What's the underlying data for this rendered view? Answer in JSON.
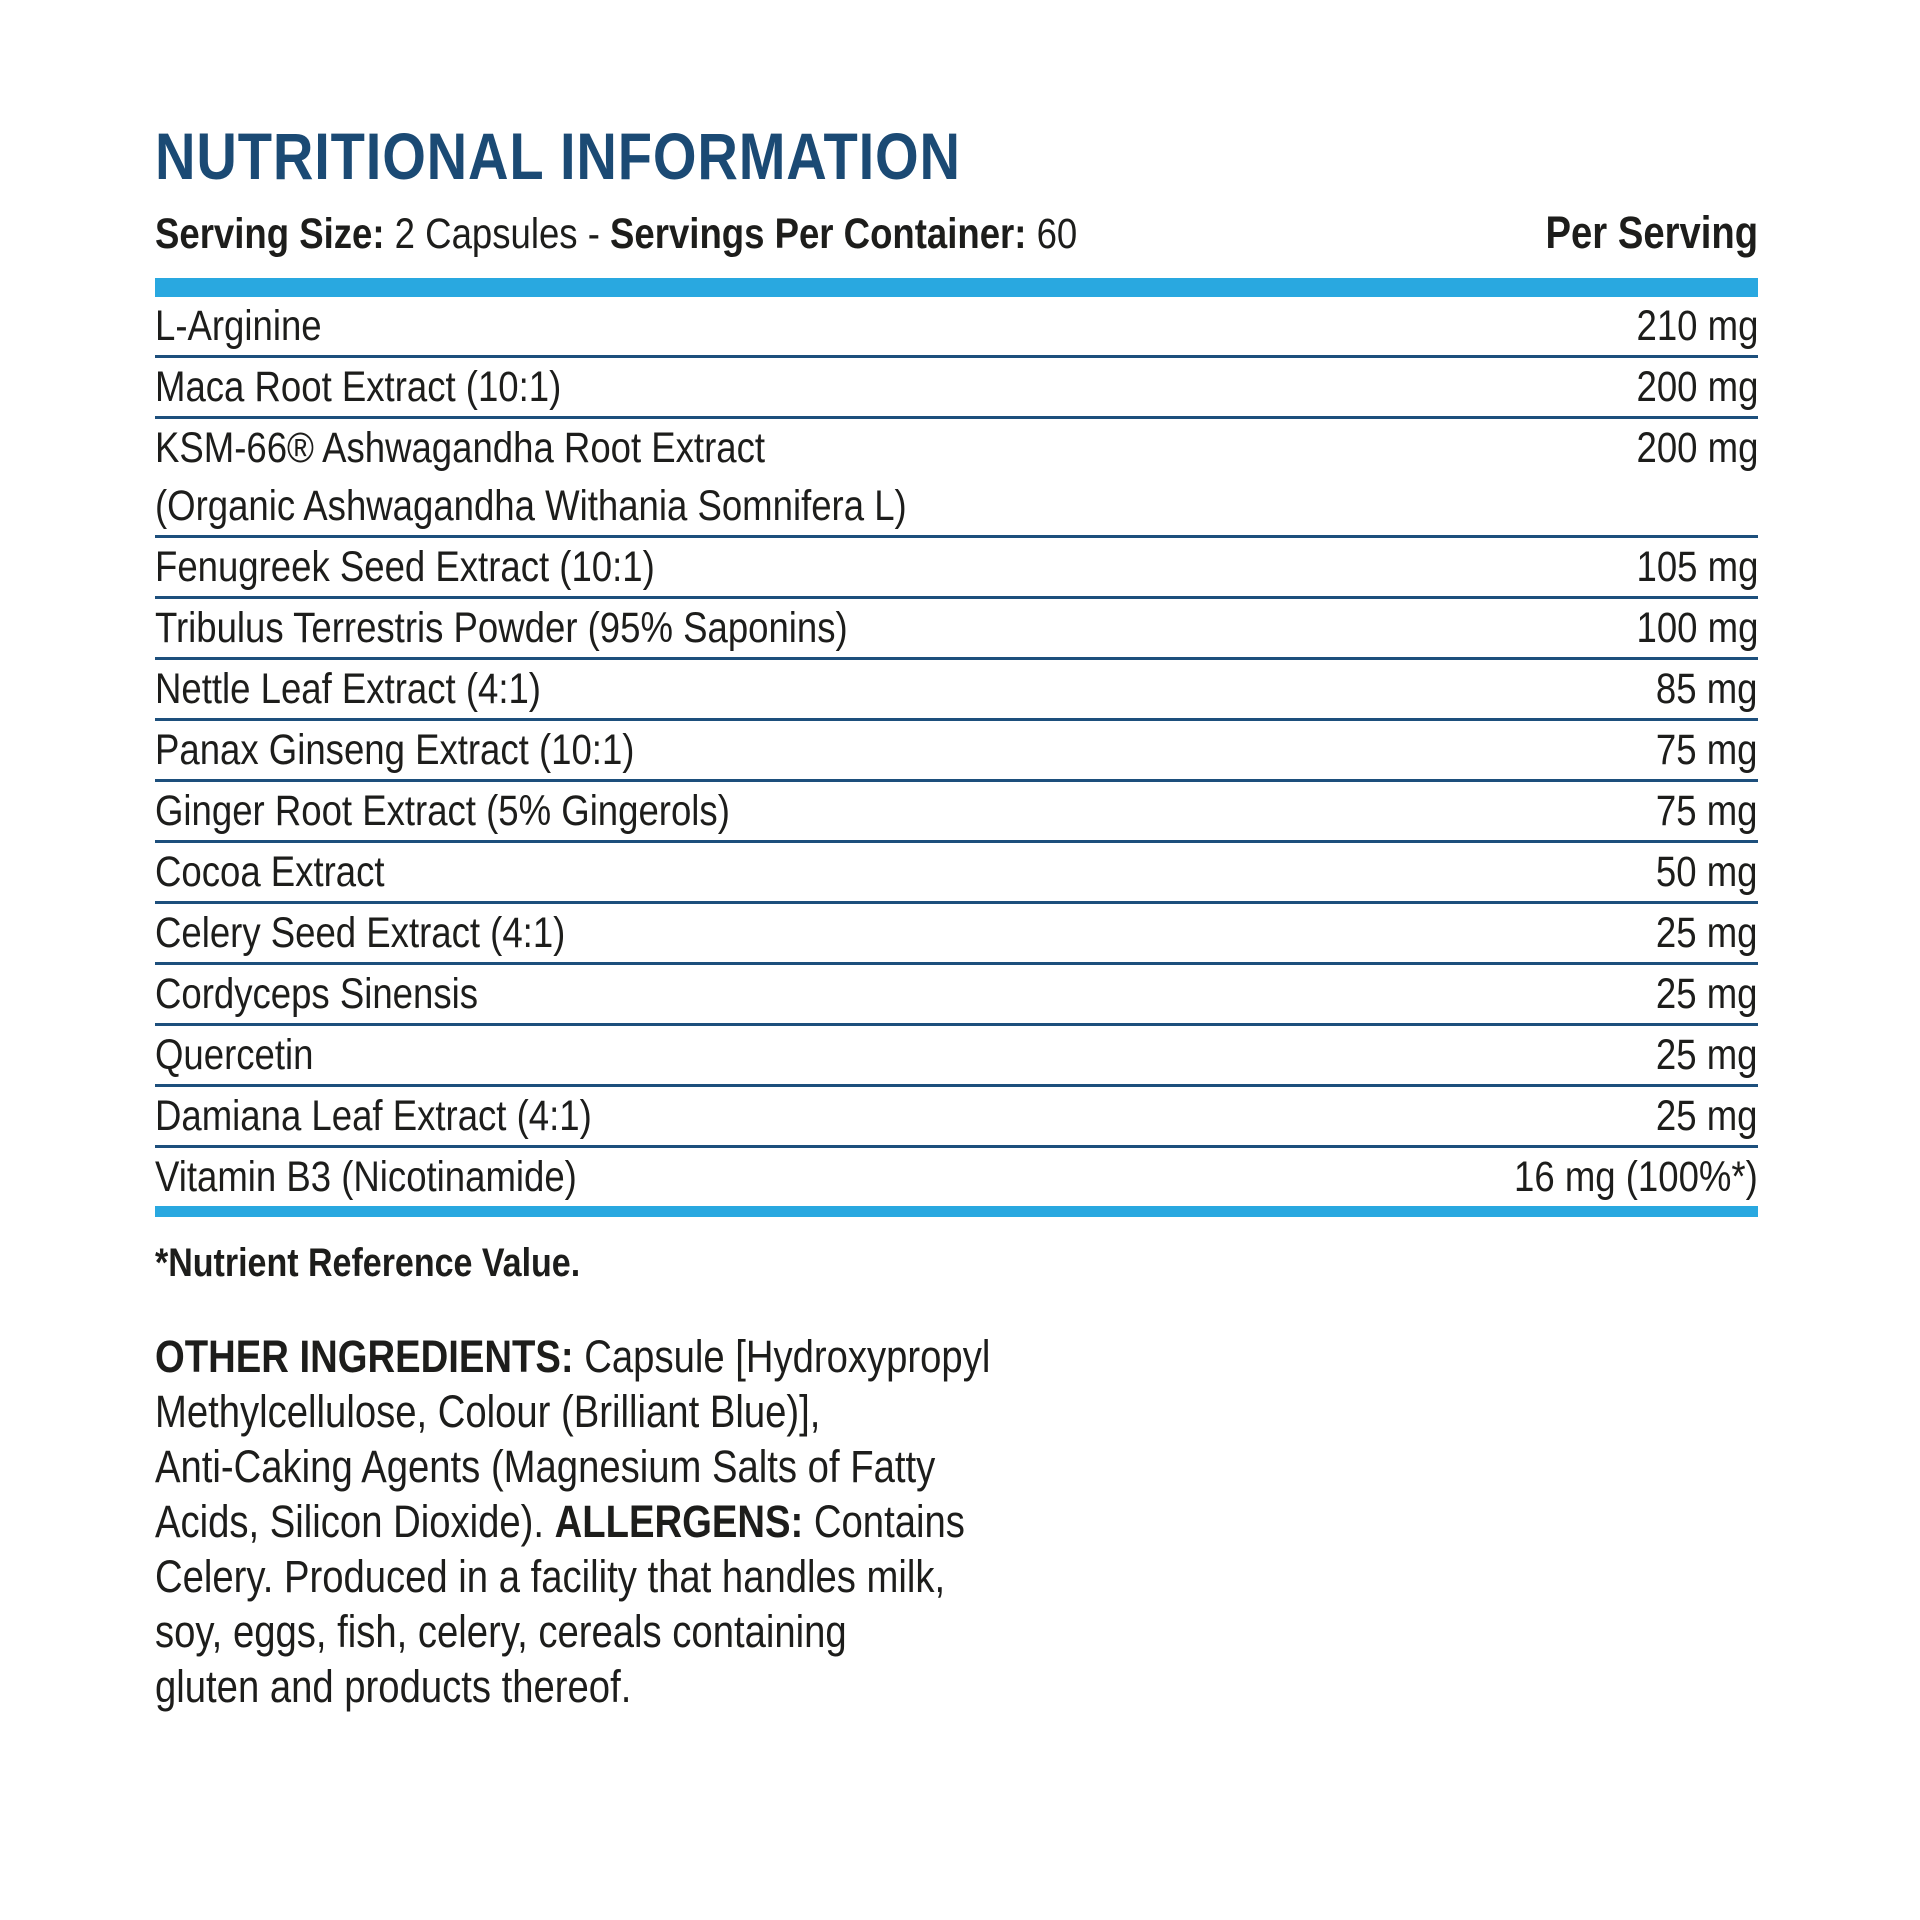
{
  "header": {
    "title": "NUTRITIONAL INFORMATION",
    "serving_size_label": "Serving Size: ",
    "serving_size_value": "2 Capsules ",
    "separator": "- ",
    "servings_label": "Servings Per Container: ",
    "servings_value": "60",
    "per_serving_label": "Per Serving"
  },
  "colors": {
    "title_blue": "#1b4a74",
    "accent_blue": "#29a8e0",
    "separator_navy": "#1d4f7c",
    "text": "#1d1d1b"
  },
  "table": {
    "rows": [
      {
        "name": "L-Arginine",
        "value": "210 mg"
      },
      {
        "name": "Maca Root Extract (10:1)",
        "value": "200 mg"
      },
      {
        "name": "KSM-66® Ashwagandha Root Extract",
        "sub": "(Organic Ashwagandha Withania Somnifera L)",
        "value": "200 mg"
      },
      {
        "name": "Fenugreek Seed Extract (10:1)",
        "value": "105 mg"
      },
      {
        "name": "Tribulus Terrestris Powder (95% Saponins)",
        "value": "100 mg"
      },
      {
        "name": "Nettle Leaf Extract (4:1)",
        "value": "85 mg"
      },
      {
        "name": "Panax Ginseng Extract (10:1)",
        "value": "75 mg"
      },
      {
        "name": "Ginger Root Extract (5% Gingerols)",
        "value": "75 mg"
      },
      {
        "name": "Cocoa Extract",
        "value": "50 mg"
      },
      {
        "name": "Celery Seed Extract (4:1)",
        "value": "25 mg"
      },
      {
        "name": "Cordyceps Sinensis",
        "value": "25 mg"
      },
      {
        "name": "Quercetin",
        "value": "25 mg"
      },
      {
        "name": "Damiana Leaf Extract (4:1)",
        "value": "25 mg"
      },
      {
        "name": "Vitamin B3 (Nicotinamide)",
        "value": "16 mg (100%*)"
      }
    ]
  },
  "footnote": "*Nutrient Reference Value.",
  "other_ingredients": {
    "lines": [
      [
        {
          "text": "OTHER INGREDIENTS: ",
          "bold": true
        },
        {
          "text": "Capsule [Hydroxypropyl",
          "bold": false
        }
      ],
      [
        {
          "text": "Methylcellulose, Colour (Brilliant Blue)],",
          "bold": false
        }
      ],
      [
        {
          "text": "Anti-Caking Agents (Magnesium Salts of Fatty",
          "bold": false
        }
      ],
      [
        {
          "text": "Acids, Silicon Dioxide). ",
          "bold": false
        },
        {
          "text": "ALLERGENS: ",
          "bold": true
        },
        {
          "text": "Contains",
          "bold": false
        }
      ],
      [
        {
          "text": "Celery. Produced in a facility that handles milk,",
          "bold": false
        }
      ],
      [
        {
          "text": "soy, eggs, fish, celery, cereals containing",
          "bold": false
        }
      ],
      [
        {
          "text": "gluten and products thereof.",
          "bold": false
        }
      ]
    ]
  }
}
